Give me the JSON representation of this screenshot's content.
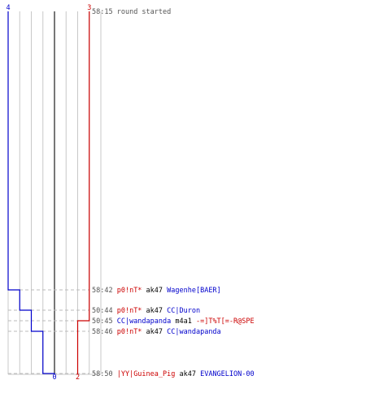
{
  "chart_data": {
    "type": "line",
    "step": true,
    "team_colors": {
      "blue": "#0000cc",
      "red": "#cc0000"
    },
    "start_labels": {
      "blue": "4",
      "red": "3"
    },
    "end_labels": {
      "blue": "0",
      "red": "2"
    },
    "x_grid_count": 8,
    "events": [
      {
        "time": "58:15",
        "text": "round started",
        "type": "start"
      },
      {
        "time": "58:42",
        "killer": "p0!nT*",
        "killer_team": "red",
        "weapon": "ak47",
        "victim": "Wagenhe[BAER]",
        "victim_team": "blue",
        "blue_alive": 3,
        "red_alive": 3
      },
      {
        "time": "50:44",
        "killer": "p0!nT*",
        "killer_team": "red",
        "weapon": "ak47",
        "victim": "CC|Duron",
        "victim_team": "blue",
        "blue_alive": 2,
        "red_alive": 3
      },
      {
        "time": "50:45",
        "killer": "CC|wandapanda",
        "killer_team": "blue",
        "weapon": "m4a1",
        "victim": "-=]T%T[=-R@SPE",
        "victim_team": "red",
        "blue_alive": 2,
        "red_alive": 2
      },
      {
        "time": "58:46",
        "killer": "p0!nT*",
        "killer_team": "red",
        "weapon": "ak47",
        "victim": "CC|wandapanda",
        "victim_team": "blue",
        "blue_alive": 1,
        "red_alive": 2
      },
      {
        "time": "58:50",
        "killer": "|YY|Guinea_Pig",
        "killer_team": "red",
        "weapon": "ak47",
        "victim": "EVANGELION-00",
        "victim_team": "blue",
        "blue_alive": 0,
        "red_alive": 2
      }
    ]
  }
}
